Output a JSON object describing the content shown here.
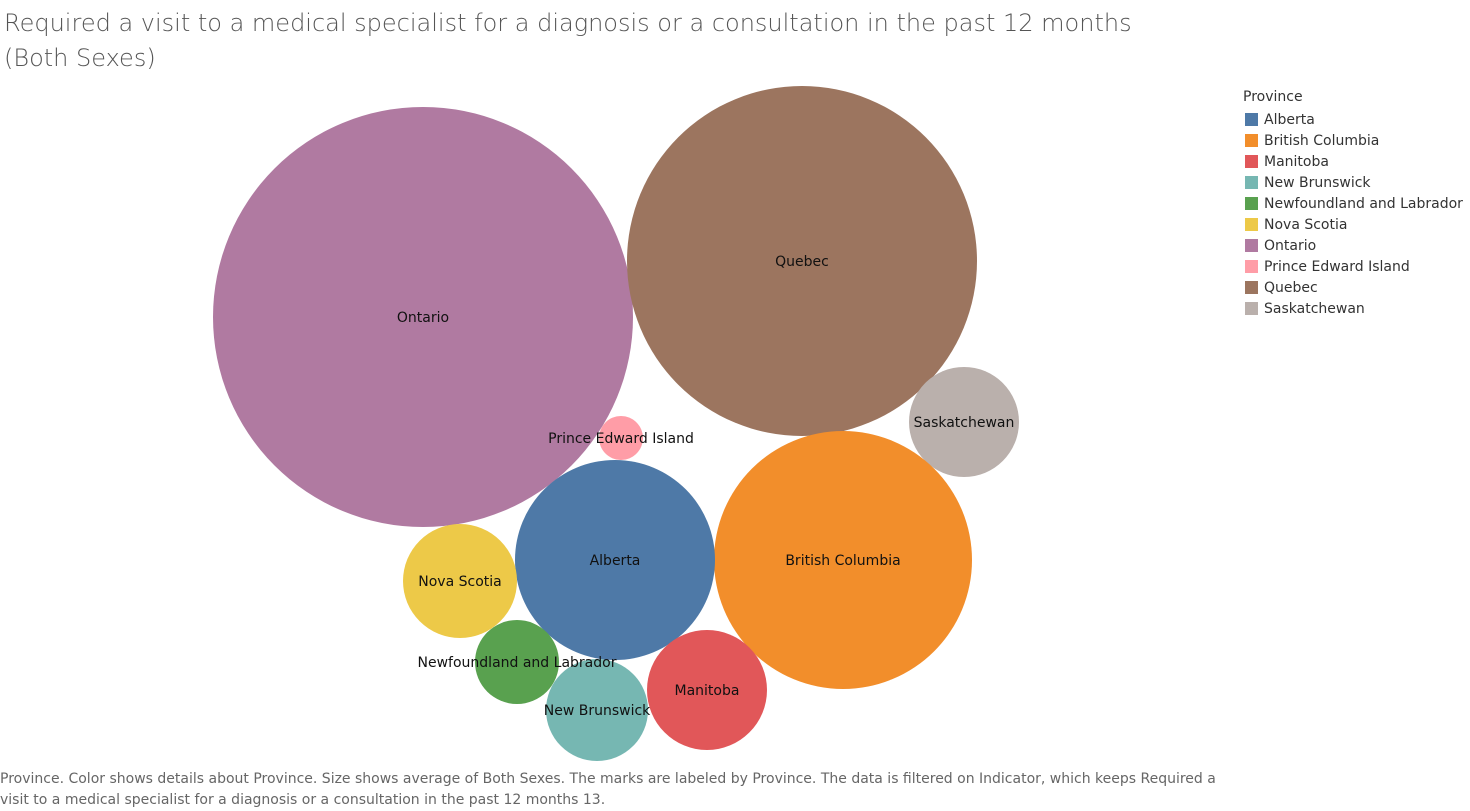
{
  "chart_data": {
    "type": "bubble",
    "title": "Required a visit to a medical specialist for a diagnosis or a consultation in the past 12 months (Both Sexes)",
    "legend": {
      "title": "Province",
      "placement": "right"
    },
    "provinces": [
      {
        "name": "Alberta",
        "color": "#4e79a7"
      },
      {
        "name": "British Columbia",
        "color": "#f28e2b"
      },
      {
        "name": "Manitoba",
        "color": "#e15759"
      },
      {
        "name": "New Brunswick",
        "color": "#76b7b2"
      },
      {
        "name": "Newfoundland and Labrador",
        "color": "#59a14f"
      },
      {
        "name": "Nova Scotia",
        "color": "#edc948"
      },
      {
        "name": "Ontario",
        "color": "#b07aa1"
      },
      {
        "name": "Prince Edward Island",
        "color": "#ff9da7"
      },
      {
        "name": "Quebec",
        "color": "#9c755f"
      },
      {
        "name": "Saskatchewan",
        "color": "#bab0ac"
      }
    ],
    "caption": "Province.  Color shows details about Province.  Size shows average of Both Sexes.  The marks are labeled by Province. The data is filtered on Indicator, which keeps Required a visit to a medical specialist for a diagnosis or a consultation in the past 12 months 13."
  }
}
